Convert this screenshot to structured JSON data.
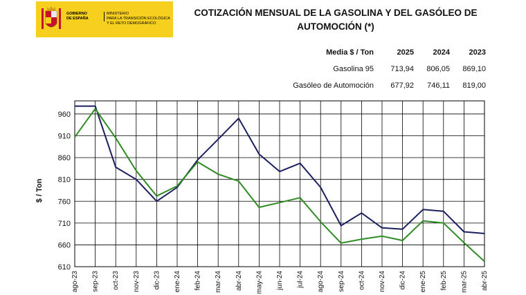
{
  "logo": {
    "gobierno": "GOBIERNO\nDE ESPAÑA",
    "ministerio": "MINISTERIO\nPARA LA TRANSICIÓN ECOLÓGICA\nY EL RETO DEMOGRÁFICO"
  },
  "title": "COTIZACIÓN MENSUAL DE LA GASOLINA Y DEL GASÓLEO DE AUTOMOCIÓN (*)",
  "stats_table": {
    "header": [
      "Media $ / Ton",
      "2025",
      "2024",
      "2023"
    ],
    "rows": [
      {
        "label": "Gasolina 95",
        "v2025": "713,94",
        "v2024": "806,05",
        "v2023": "869,10"
      },
      {
        "label": "Gasóleo de Automoción",
        "v2025": "677,92",
        "v2024": "746,11",
        "v2023": "819,00"
      }
    ]
  },
  "colors": {
    "gasolina": "#1b1f5e",
    "gasoleo": "#2e8b22",
    "grid": "#000000",
    "logo_bg": "#f7cf1f"
  },
  "chart_data": {
    "type": "line",
    "ylabel": "$ / Ton",
    "xlabel": "",
    "ylim": [
      610,
      990
    ],
    "yticks": [
      610,
      660,
      710,
      760,
      810,
      860,
      910,
      960
    ],
    "grid": true,
    "categories": [
      "ago-23",
      "sep-23",
      "oct-23",
      "nov-23",
      "dic-23",
      "ene-24",
      "feb-24",
      "mar-24",
      "abr-24",
      "may-24",
      "jun-24",
      "jul-24",
      "ago-24",
      "sep-24",
      "oct-24",
      "nov-24",
      "dic-24",
      "ene-25",
      "feb-25",
      "mar-25",
      "abr-25"
    ],
    "series": [
      {
        "name": "Gasolina 95",
        "color": "#1b1f5e",
        "values": [
          978,
          978,
          838,
          810,
          760,
          792,
          855,
          902,
          950,
          868,
          828,
          847,
          792,
          704,
          733,
          699,
          696,
          741,
          737,
          690,
          686
        ]
      },
      {
        "name": "Gasóleo de Automoción",
        "color": "#2e8b22",
        "values": [
          907,
          972,
          905,
          830,
          772,
          795,
          850,
          822,
          806,
          746,
          757,
          768,
          713,
          664,
          673,
          680,
          670,
          715,
          710,
          665,
          622
        ]
      }
    ]
  }
}
